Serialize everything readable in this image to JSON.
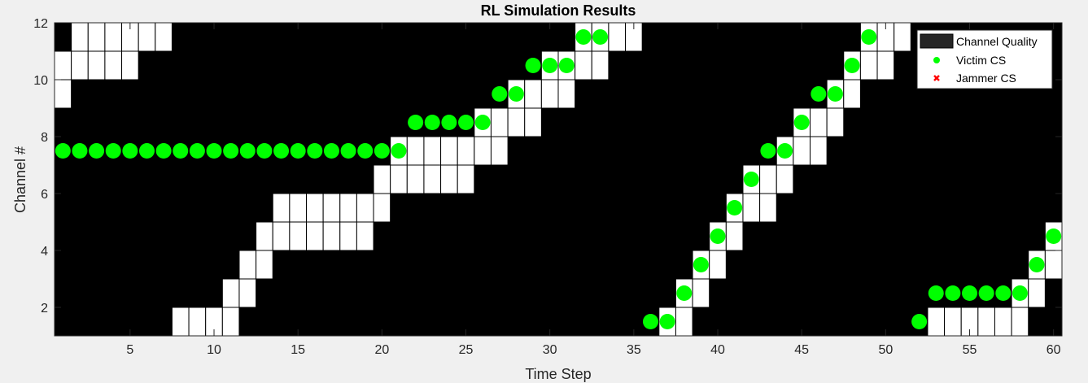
{
  "chart_data": {
    "type": "heatmap",
    "title": "RL Simulation Results",
    "xlabel": "Time Step",
    "ylabel": "Channel #",
    "xlim": [
      0.5,
      60.5
    ],
    "ylim": [
      1,
      12
    ],
    "xticks": [
      5,
      10,
      15,
      20,
      25,
      30,
      35,
      40,
      45,
      50,
      55,
      60
    ],
    "yticks": [
      2,
      4,
      6,
      8,
      10,
      12
    ],
    "legend_position": "top-right",
    "legend": [
      "Channel Quality",
      "Victim CS",
      "Jammer CS"
    ],
    "colors": {
      "background": "#000000",
      "good_channel": "#ffffff",
      "victim": "#00ff00",
      "jammer": "#ff0000",
      "figure": "#f0f0f0"
    },
    "series": [
      {
        "name": "Channel Quality",
        "cell_value": "good",
        "cells": [
          [
            1,
            9
          ],
          [
            1,
            10
          ],
          [
            2,
            10
          ],
          [
            2,
            11
          ],
          [
            3,
            10
          ],
          [
            3,
            11
          ],
          [
            4,
            10
          ],
          [
            4,
            11
          ],
          [
            5,
            10
          ],
          [
            5,
            11
          ],
          [
            6,
            11
          ],
          [
            7,
            11
          ],
          [
            8,
            1
          ],
          [
            9,
            1
          ],
          [
            10,
            1
          ],
          [
            11,
            1
          ],
          [
            11,
            2
          ],
          [
            12,
            2
          ],
          [
            12,
            3
          ],
          [
            13,
            3
          ],
          [
            13,
            4
          ],
          [
            14,
            4
          ],
          [
            14,
            5
          ],
          [
            15,
            4
          ],
          [
            15,
            5
          ],
          [
            16,
            4
          ],
          [
            16,
            5
          ],
          [
            17,
            4
          ],
          [
            17,
            5
          ],
          [
            18,
            4
          ],
          [
            18,
            5
          ],
          [
            19,
            4
          ],
          [
            19,
            5
          ],
          [
            20,
            5
          ],
          [
            20,
            6
          ],
          [
            21,
            6
          ],
          [
            21,
            7
          ],
          [
            22,
            6
          ],
          [
            22,
            7
          ],
          [
            23,
            6
          ],
          [
            23,
            7
          ],
          [
            24,
            6
          ],
          [
            24,
            7
          ],
          [
            25,
            6
          ],
          [
            25,
            7
          ],
          [
            26,
            7
          ],
          [
            26,
            8
          ],
          [
            27,
            7
          ],
          [
            27,
            8
          ],
          [
            28,
            8
          ],
          [
            28,
            9
          ],
          [
            29,
            8
          ],
          [
            29,
            9
          ],
          [
            30,
            9
          ],
          [
            30,
            10
          ],
          [
            31,
            9
          ],
          [
            31,
            10
          ],
          [
            32,
            10
          ],
          [
            32,
            11
          ],
          [
            33,
            10
          ],
          [
            33,
            11
          ],
          [
            34,
            11
          ],
          [
            35,
            11
          ],
          [
            37,
            1
          ],
          [
            38,
            1
          ],
          [
            38,
            2
          ],
          [
            39,
            2
          ],
          [
            39,
            3
          ],
          [
            40,
            3
          ],
          [
            40,
            4
          ],
          [
            41,
            4
          ],
          [
            41,
            5
          ],
          [
            42,
            5
          ],
          [
            42,
            6
          ],
          [
            43,
            5
          ],
          [
            43,
            6
          ],
          [
            44,
            6
          ],
          [
            44,
            7
          ],
          [
            45,
            7
          ],
          [
            45,
            8
          ],
          [
            46,
            7
          ],
          [
            46,
            8
          ],
          [
            47,
            8
          ],
          [
            47,
            9
          ],
          [
            48,
            9
          ],
          [
            48,
            10
          ],
          [
            49,
            10
          ],
          [
            49,
            11
          ],
          [
            50,
            10
          ],
          [
            50,
            11
          ],
          [
            51,
            11
          ],
          [
            53,
            1
          ],
          [
            54,
            1
          ],
          [
            55,
            1
          ],
          [
            56,
            1
          ],
          [
            57,
            1
          ],
          [
            58,
            1
          ],
          [
            58,
            2
          ],
          [
            59,
            2
          ],
          [
            59,
            3
          ],
          [
            60,
            3
          ],
          [
            60,
            4
          ]
        ]
      },
      {
        "name": "Victim CS",
        "points": [
          [
            1,
            7.5
          ],
          [
            2,
            7.5
          ],
          [
            3,
            7.5
          ],
          [
            4,
            7.5
          ],
          [
            5,
            7.5
          ],
          [
            6,
            7.5
          ],
          [
            7,
            7.5
          ],
          [
            8,
            7.5
          ],
          [
            9,
            7.5
          ],
          [
            10,
            7.5
          ],
          [
            11,
            7.5
          ],
          [
            12,
            7.5
          ],
          [
            13,
            7.5
          ],
          [
            14,
            7.5
          ],
          [
            15,
            7.5
          ],
          [
            16,
            7.5
          ],
          [
            17,
            7.5
          ],
          [
            18,
            7.5
          ],
          [
            19,
            7.5
          ],
          [
            20,
            7.5
          ],
          [
            21,
            7.5
          ],
          [
            22,
            8.5
          ],
          [
            23,
            8.5
          ],
          [
            24,
            8.5
          ],
          [
            25,
            8.5
          ],
          [
            26,
            8.5
          ],
          [
            27,
            9.5
          ],
          [
            28,
            9.5
          ],
          [
            29,
            10.5
          ],
          [
            30,
            10.5
          ],
          [
            31,
            10.5
          ],
          [
            32,
            11.5
          ],
          [
            33,
            11.5
          ],
          [
            36,
            1.5
          ],
          [
            37,
            1.5
          ],
          [
            38,
            2.5
          ],
          [
            39,
            3.5
          ],
          [
            40,
            4.5
          ],
          [
            41,
            5.5
          ],
          [
            42,
            6.5
          ],
          [
            43,
            7.5
          ],
          [
            44,
            7.5
          ],
          [
            45,
            8.5
          ],
          [
            46,
            9.5
          ],
          [
            47,
            9.5
          ],
          [
            48,
            10.5
          ],
          [
            49,
            11.5
          ],
          [
            52,
            1.5
          ],
          [
            53,
            2.5
          ],
          [
            54,
            2.5
          ],
          [
            55,
            2.5
          ],
          [
            56,
            2.5
          ],
          [
            57,
            2.5
          ],
          [
            58,
            2.5
          ],
          [
            59,
            3.5
          ],
          [
            60,
            4.5
          ]
        ]
      },
      {
        "name": "Jammer CS",
        "points": []
      }
    ]
  }
}
